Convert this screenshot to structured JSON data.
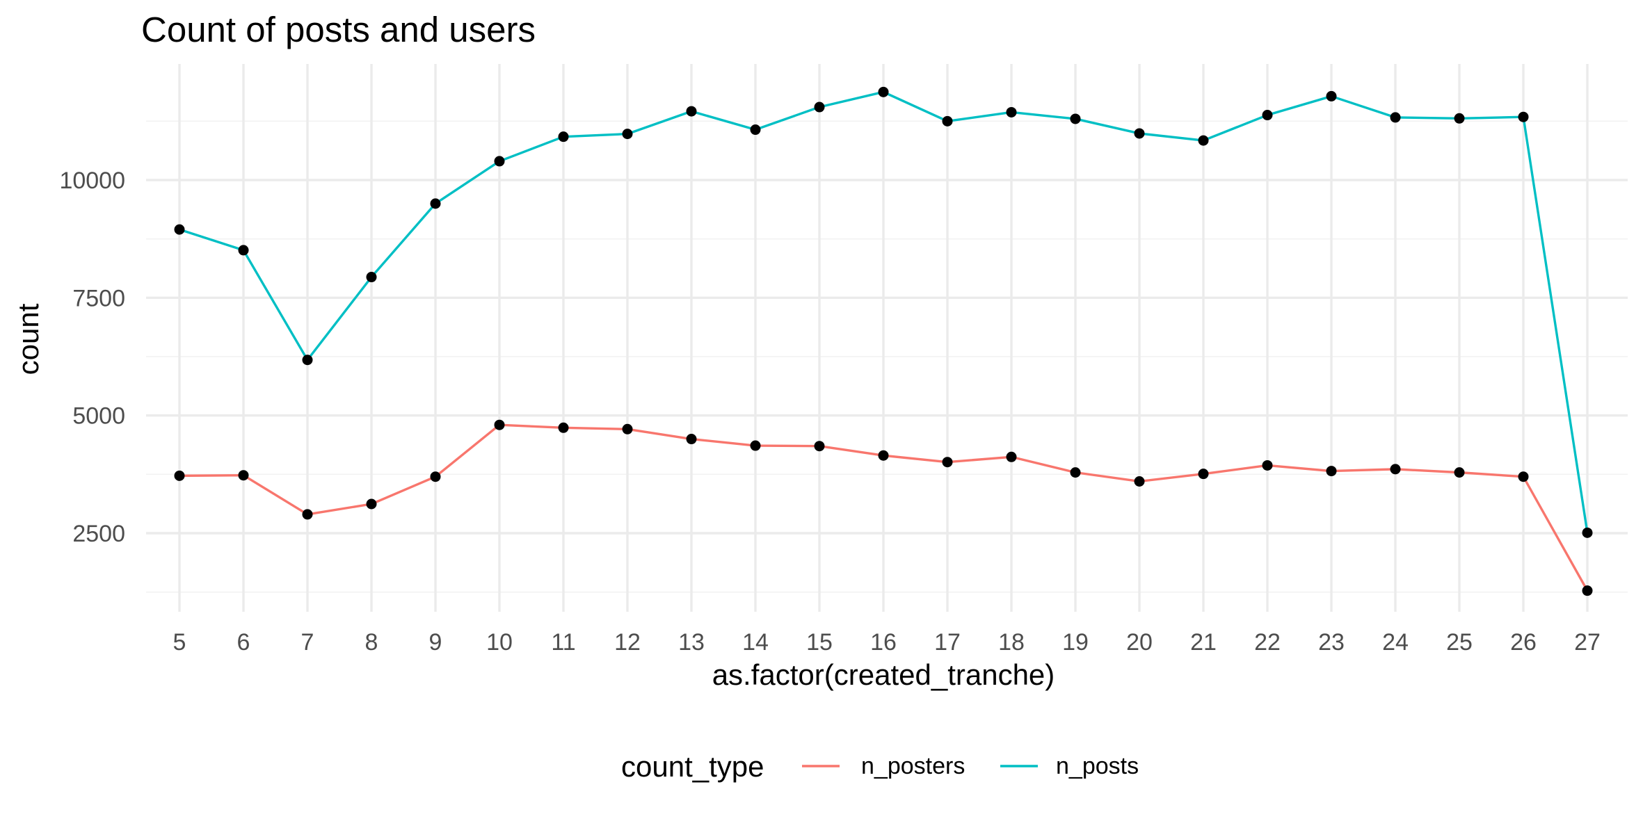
{
  "chart_data": {
    "type": "line",
    "title": "Count of posts and users",
    "xlabel": "as.factor(created_tranche)",
    "ylabel": "count",
    "categories": [
      "5",
      "6",
      "7",
      "8",
      "9",
      "10",
      "11",
      "12",
      "13",
      "14",
      "15",
      "16",
      "17",
      "18",
      "19",
      "20",
      "21",
      "22",
      "23",
      "24",
      "25",
      "26",
      "27"
    ],
    "yticks": [
      2500,
      5000,
      7500,
      10000
    ],
    "ytick_labels": [
      "2500",
      "5000",
      "7500",
      "10000"
    ],
    "ylim": [
      1000,
      12250
    ],
    "grid": true,
    "points": "black dots on every data point",
    "legend": {
      "position": "bottom",
      "title": "count_type"
    },
    "series": [
      {
        "name": "n_posters",
        "color": "#F8766D",
        "values": [
          3720,
          3730,
          2900,
          3120,
          3700,
          4800,
          4740,
          4710,
          4500,
          4360,
          4350,
          4150,
          4010,
          4120,
          3790,
          3600,
          3760,
          3940,
          3820,
          3860,
          3790,
          3700,
          1280
        ]
      },
      {
        "name": "n_posts",
        "color": "#00BFC4",
        "values": [
          8950,
          8510,
          6180,
          7940,
          9500,
          10400,
          10920,
          10980,
          11460,
          11070,
          11550,
          11870,
          11250,
          11440,
          11300,
          10990,
          10840,
          11380,
          11780,
          11330,
          11310,
          11340,
          2510
        ]
      }
    ]
  }
}
